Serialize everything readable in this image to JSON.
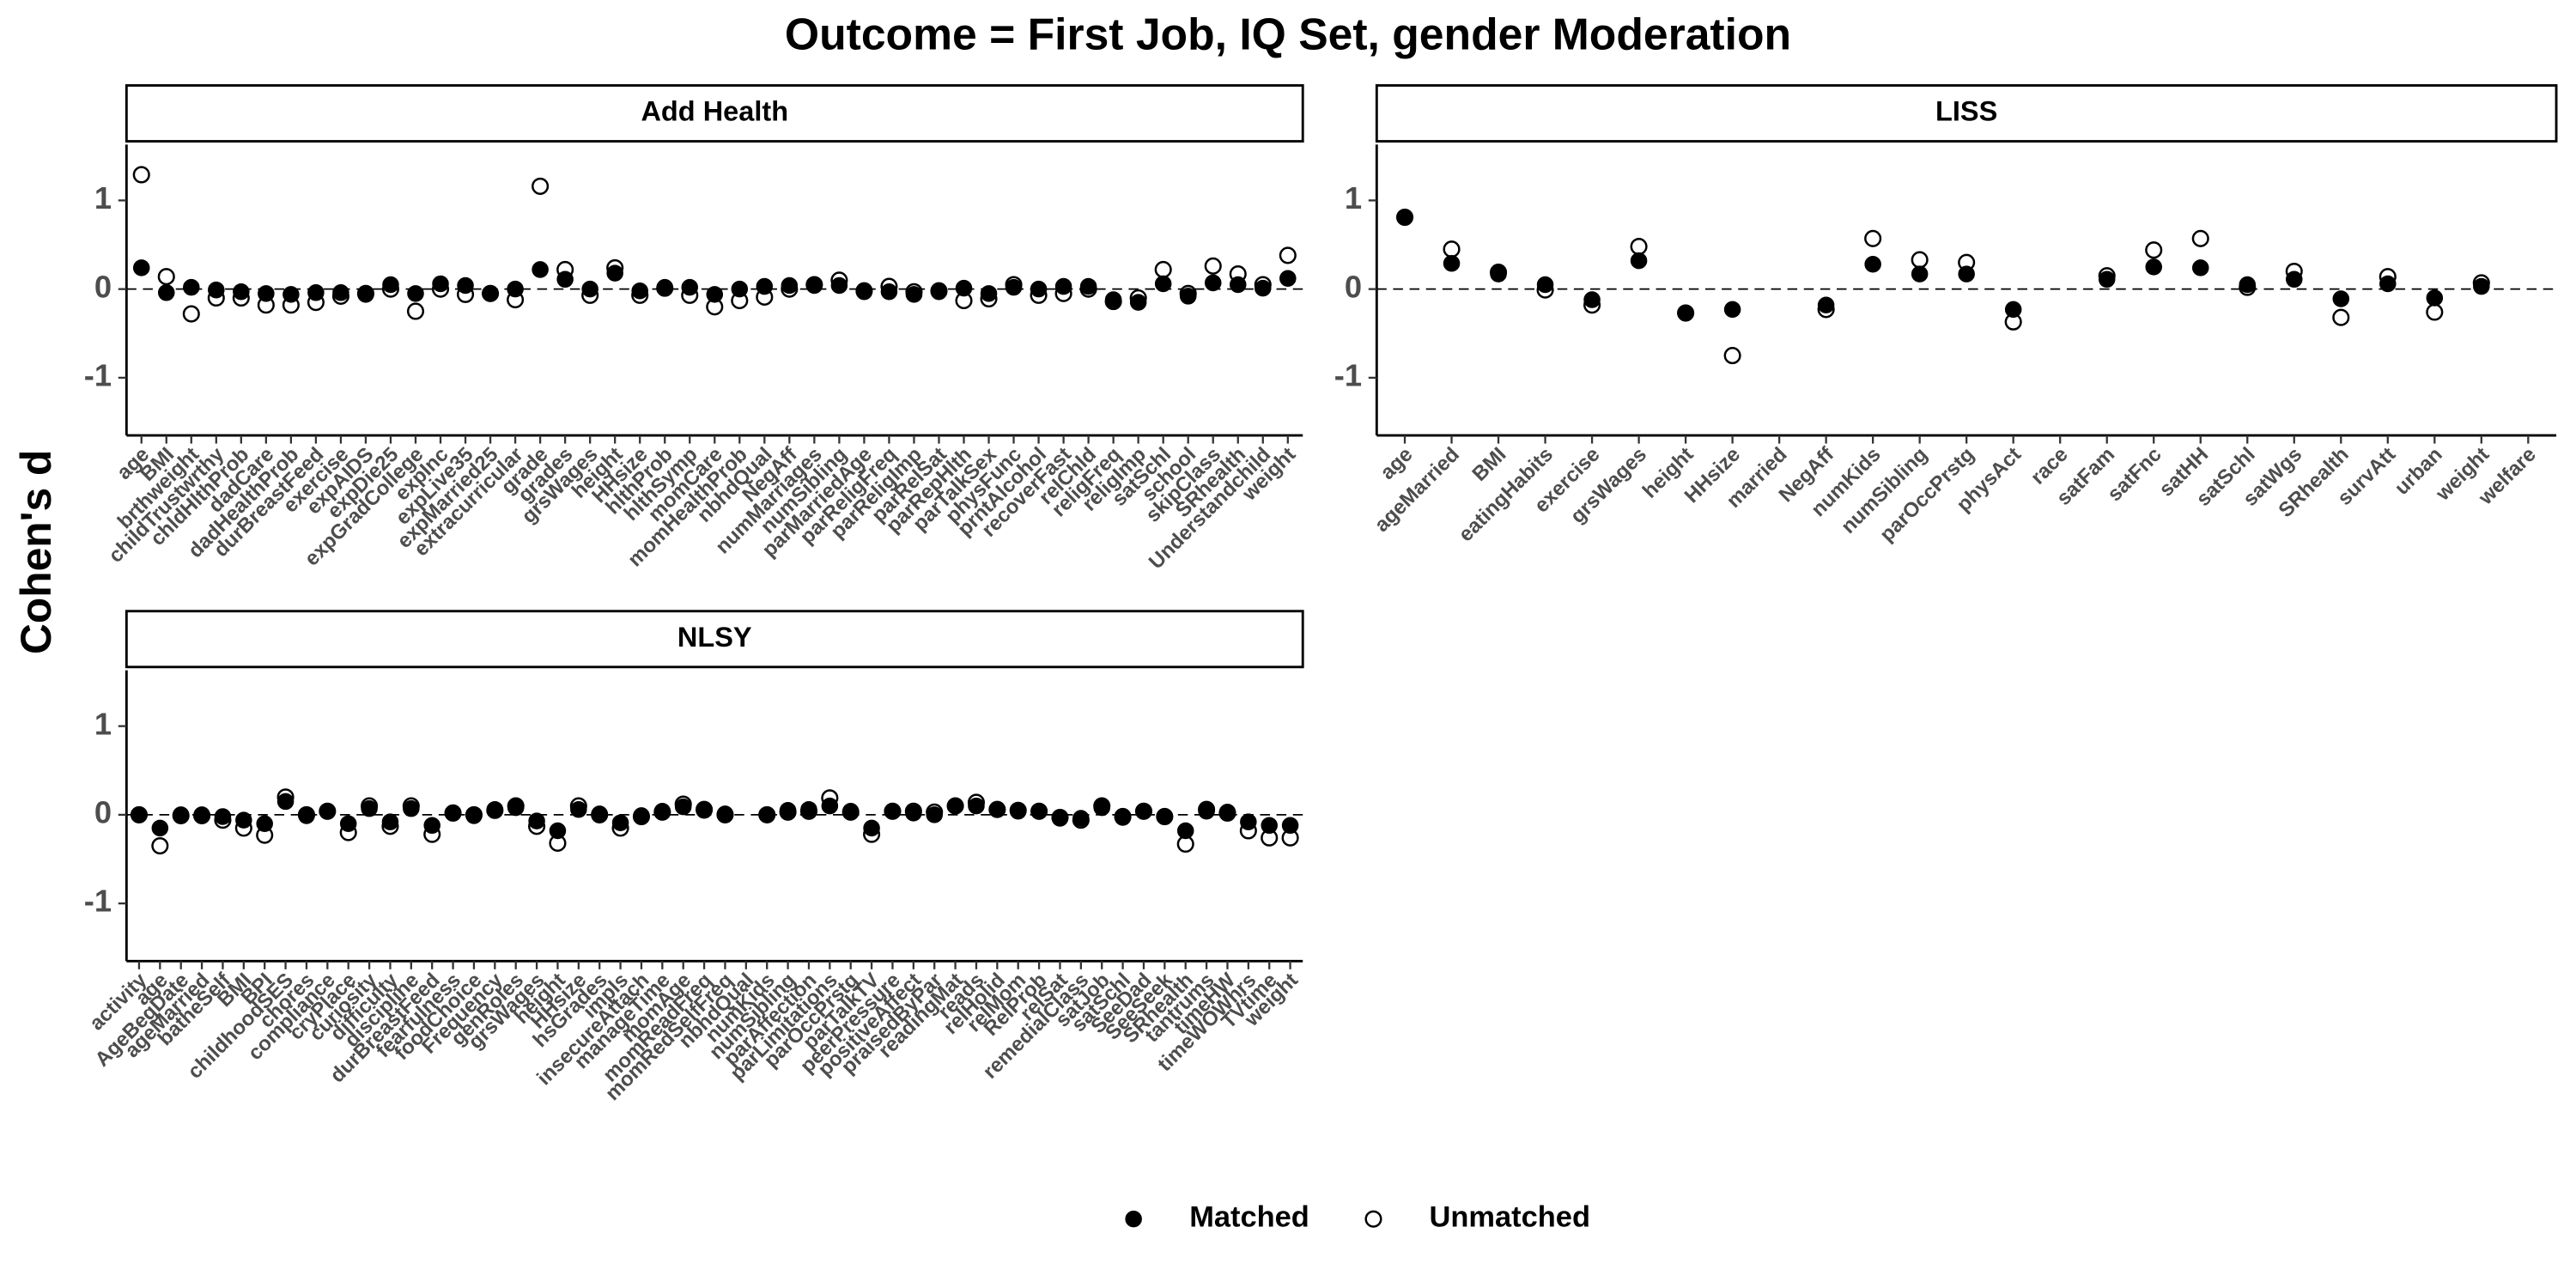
{
  "chart_data": {
    "type": "dotplot",
    "title": "Outcome = First Job, IQ Set, gender Moderation",
    "y_label": "Cohen's d",
    "ylim": [
      -1.65,
      1.63
    ],
    "yticks": [
      -1,
      0,
      1
    ],
    "hline": 0,
    "legend_position": "bottom",
    "series": [
      {
        "name": "Matched",
        "marker": "filled",
        "color": "#000000"
      },
      {
        "name": "Unmatched",
        "marker": "open",
        "color": "#000000"
      }
    ],
    "panels": [
      {
        "title": "Add Health",
        "categories": [
          "age",
          "BMI",
          "brthweight",
          "childTrustwrthy",
          "chldHlthProb",
          "dadCare",
          "dadHealthProb",
          "durBreastFeed",
          "exercise",
          "expAIDS",
          "expDie25",
          "expGradCollege",
          "expInc",
          "expLive35",
          "expMarried25",
          "extracurricular",
          "grade",
          "grades",
          "grsWages",
          "height",
          "HHsize",
          "hlthProb",
          "hlthSymp",
          "momCare",
          "momHealthProb",
          "nbhdQual",
          "NegAff",
          "numMarriages",
          "numSibling",
          "parMarriedAge",
          "parReligFreq",
          "parReligImp",
          "parRelSat",
          "parRepHlth",
          "parTalkSex",
          "physFunc",
          "prntAlcohol",
          "recoverFast",
          "relChld",
          "religFreq",
          "religImp",
          "satSchl",
          "school",
          "skipClass",
          "SRhealth",
          "Understandchild",
          "weight"
        ],
        "values": [
          [
            0.24,
            -0.04,
            0.02,
            -0.01,
            -0.03,
            -0.05,
            -0.06,
            -0.04,
            -0.04,
            -0.06,
            0.05,
            -0.05,
            0.06,
            0.04,
            -0.05,
            0.0,
            0.22,
            0.11,
            0.0,
            0.18,
            -0.02,
            0.02,
            0.02,
            -0.06,
            0.0,
            0.03,
            0.04,
            0.04,
            0.04,
            -0.03,
            -0.03,
            -0.06,
            -0.03,
            0.01,
            -0.05,
            0.02,
            0.0,
            0.03,
            0.03,
            -0.12,
            -0.15,
            0.06,
            -0.08,
            0.07,
            0.05,
            0.01,
            0.12
          ],
          [
            1.29,
            0.14,
            -0.28,
            -0.1,
            -0.1,
            -0.18,
            -0.18,
            -0.15,
            -0.08,
            -0.05,
            0.0,
            -0.25,
            0.0,
            -0.06,
            -0.05,
            -0.12,
            1.16,
            0.22,
            -0.07,
            0.24,
            -0.07,
            0.01,
            -0.07,
            -0.2,
            -0.13,
            -0.09,
            0.0,
            0.05,
            0.1,
            -0.02,
            0.03,
            -0.03,
            -0.02,
            -0.13,
            -0.11,
            0.05,
            -0.07,
            -0.05,
            0.0,
            -0.14,
            -0.1,
            0.22,
            -0.05,
            0.26,
            0.17,
            0.05,
            0.38
          ]
        ]
      },
      {
        "title": "LISS",
        "categories": [
          "age",
          "ageMarried",
          "BMI",
          "eatingHabits",
          "exercise",
          "grsWages",
          "height",
          "HHsize",
          "married",
          "NegAff",
          "numKids",
          "numSibling",
          "parOccPrstg",
          "physAct",
          "race",
          "satFam",
          "satFnc",
          "satHH",
          "satSchl",
          "satWgs",
          "SRhealth",
          "survAtt",
          "urban",
          "weight",
          "welfare"
        ],
        "values": [
          [
            0.81,
            0.29,
            0.17,
            0.05,
            -0.12,
            0.32,
            -0.27,
            -0.23,
            null,
            -0.18,
            0.28,
            0.17,
            0.17,
            -0.23,
            null,
            0.11,
            0.25,
            0.24,
            0.05,
            0.11,
            -0.11,
            0.06,
            -0.1,
            0.03,
            null
          ],
          [
            0.81,
            0.45,
            0.19,
            -0.01,
            -0.18,
            0.48,
            -0.27,
            -0.75,
            null,
            -0.23,
            0.57,
            0.33,
            0.3,
            -0.37,
            null,
            0.15,
            0.44,
            0.57,
            0.02,
            0.2,
            -0.32,
            0.14,
            -0.26,
            0.07,
            null
          ]
        ]
      },
      {
        "title": "NLSY",
        "categories": [
          "activity",
          "age",
          "AgeBegDate",
          "ageMarried",
          "batheSelf",
          "BMI",
          "BPI",
          "childhoodSES",
          "chores",
          "compliance",
          "cryPlace",
          "curiosity",
          "difficulty",
          "discipline",
          "durBreastFeed",
          "fearfulness",
          "foodChoice",
          "Frequency",
          "genRoles",
          "grsWages",
          "height",
          "HHsize",
          "hsGrades",
          "impls",
          "insecureAttach",
          "manageTime",
          "momAge",
          "momReadFreq",
          "momRedSelfFreq",
          "nbhdQual",
          "numKids",
          "numSibling",
          "parAffection",
          "parLimitations",
          "parOccPrstg",
          "parTalkTV",
          "peerPressure",
          "positiveAffect",
          "praisedByPar",
          "readingMat",
          "reads",
          "relHolid",
          "relMom",
          "RelProb",
          "relSat",
          "remedialClass",
          "satJob",
          "satSchl",
          "SeeDad",
          "SeeSeek",
          "SRhealth",
          "tantrums",
          "timeHW",
          "timeWOWhrs",
          "TVtime",
          "weight"
        ],
        "values": [
          [
            0.0,
            -0.15,
            0.0,
            0.0,
            -0.02,
            -0.06,
            -0.1,
            0.15,
            -0.01,
            0.04,
            -0.1,
            0.07,
            -0.08,
            0.07,
            -0.12,
            0.02,
            -0.01,
            0.06,
            0.08,
            -0.07,
            -0.18,
            0.06,
            0.01,
            -0.09,
            -0.01,
            0.04,
            0.09,
            0.05,
            0.01,
            null,
            0.0,
            0.05,
            0.06,
            0.1,
            0.04,
            -0.15,
            0.04,
            0.02,
            0.0,
            0.1,
            0.1,
            0.06,
            0.04,
            0.04,
            -0.04,
            -0.04,
            0.08,
            -0.03,
            0.04,
            -0.02,
            -0.18,
            0.04,
            0.03,
            -0.08,
            -0.12,
            -0.12
          ],
          [
            0.0,
            -0.35,
            -0.01,
            -0.01,
            -0.06,
            -0.15,
            -0.23,
            0.2,
            0.0,
            0.04,
            -0.2,
            0.1,
            -0.13,
            0.1,
            -0.22,
            0.02,
            0.0,
            0.05,
            0.1,
            -0.13,
            -0.32,
            0.1,
            0.0,
            -0.15,
            -0.02,
            0.03,
            0.12,
            0.06,
            0.0,
            null,
            0.0,
            0.03,
            0.04,
            0.19,
            0.03,
            -0.22,
            0.04,
            0.04,
            0.03,
            0.1,
            0.14,
            0.06,
            0.05,
            0.04,
            -0.03,
            -0.06,
            0.1,
            -0.02,
            0.04,
            -0.02,
            -0.33,
            0.06,
            0.02,
            -0.18,
            -0.26,
            -0.26
          ]
        ]
      }
    ]
  }
}
